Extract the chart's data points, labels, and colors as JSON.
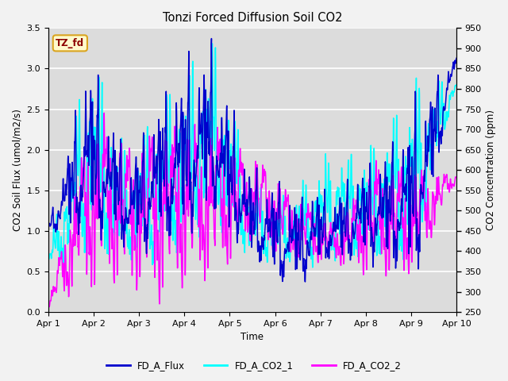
{
  "title": "Tonzi Forced Diffusion Soil CO2",
  "xlabel": "Time",
  "ylabel_left": "CO2 Soil Flux (umol/m2/s)",
  "ylabel_right": "CO2 Concentration (ppm)",
  "ylim_left": [
    0.0,
    3.5
  ],
  "ylim_right": [
    250,
    950
  ],
  "yticks_left": [
    0.0,
    0.5,
    1.0,
    1.5,
    2.0,
    2.5,
    3.0,
    3.5
  ],
  "yticks_right": [
    250,
    300,
    350,
    400,
    450,
    500,
    550,
    600,
    650,
    700,
    750,
    800,
    850,
    900,
    950
  ],
  "xtick_labels": [
    "Apr 1",
    "Apr 2",
    "Apr 3",
    "Apr 4",
    "Apr 5",
    "Apr 6",
    "Apr 7",
    "Apr 8",
    "Apr 9",
    "Apr 10"
  ],
  "color_flux": "#0000CD",
  "color_co2_1": "#00FFFF",
  "color_co2_2": "#FF00FF",
  "legend_labels": [
    "FD_A_Flux",
    "FD_A_CO2_1",
    "FD_A_CO2_2"
  ],
  "annotation_text": "TZ_fd",
  "annotation_color": "#8B0000",
  "annotation_bg": "#FFFACD",
  "annotation_border": "#DAA520",
  "background_color": "#DCDCDC",
  "grid_color": "#FFFFFF",
  "n_points": 2160,
  "seed": 42
}
